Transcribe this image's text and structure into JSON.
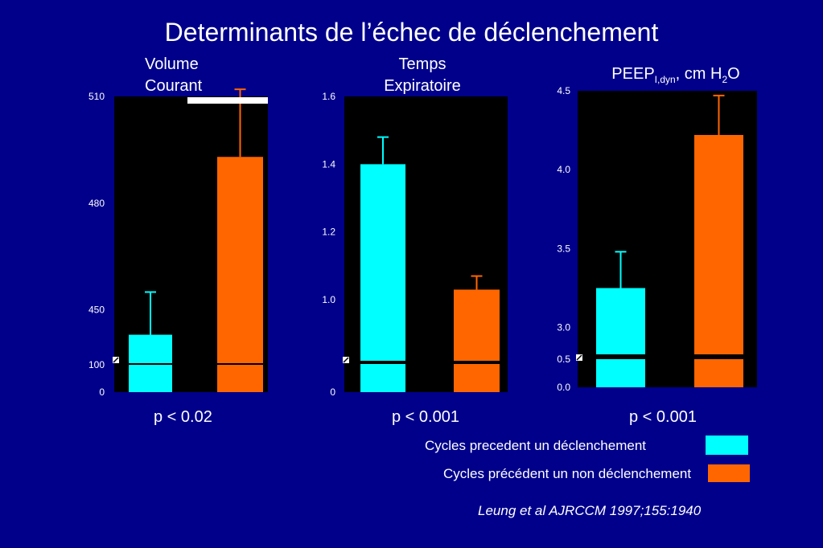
{
  "title": "Determinants de l’échec de déclenchement",
  "colors": {
    "background": "#00008b",
    "cyan": "#00ffff",
    "orange": "#ff6600",
    "plot_bg": "#000000"
  },
  "panels": [
    {
      "title_line1": "Volume",
      "title_line2": "Courant",
      "p_value": "p < 0.02"
    },
    {
      "title_line1": "Temps",
      "title_line2": "Expiratoire",
      "p_value": "p < 0.001"
    },
    {
      "title_main": "PEEP",
      "title_sub": "I,dyn",
      "title_rest": ", cm H",
      "title_sub2": "2",
      "title_end": "O",
      "p_value": "p < 0.001"
    }
  ],
  "legend": {
    "cyan_label": "Cycles precedent un déclenchement",
    "orange_label": "Cycles précédent un non déclenchement"
  },
  "citation": "Leung et al AJRCCM 1997;155:1940",
  "chart_data": [
    {
      "type": "bar",
      "categories": [
        "Cycles precedent un déclenchement",
        "Cycles précédent un non déclenchement"
      ],
      "values": [
        443,
        493
      ],
      "error_upper": [
        455,
        512
      ],
      "ylim_main": [
        435,
        510
      ],
      "ylim_break": [
        0,
        100
      ],
      "yticks": [
        {
          "value": 510,
          "label": "510"
        },
        {
          "value": 480,
          "label": "480"
        },
        {
          "value": 450,
          "label": "450"
        }
      ],
      "break_ticks": [
        {
          "value": 100,
          "label": "100"
        },
        {
          "value": 0,
          "label": "0"
        }
      ],
      "axis_break": true
    },
    {
      "type": "bar",
      "categories": [
        "Cycles precedent un déclenchement",
        "Cycles précédent un non déclenchement"
      ],
      "values": [
        1.4,
        1.03
      ],
      "error_upper": [
        1.48,
        1.07
      ],
      "ylim_main": [
        0.82,
        1.6
      ],
      "ylim_break": [
        0,
        0.82
      ],
      "yticks": [
        {
          "value": 1.6,
          "label": "1.6"
        },
        {
          "value": 1.4,
          "label": "1.4"
        },
        {
          "value": 1.2,
          "label": "1.2"
        },
        {
          "value": 1.0,
          "label": "1.0"
        }
      ],
      "break_ticks": [
        {
          "value": 0,
          "label": "0"
        }
      ],
      "axis_break": true
    },
    {
      "type": "bar",
      "categories": [
        "Cycles precedent un déclenchement",
        "Cycles précédent un non déclenchement"
      ],
      "values": [
        3.25,
        4.22
      ],
      "error_upper": [
        3.48,
        4.47
      ],
      "ylim_main": [
        2.83,
        4.5
      ],
      "ylim_break": [
        0,
        0.5
      ],
      "yticks": [
        {
          "value": 4.5,
          "label": "4.5"
        },
        {
          "value": 4.0,
          "label": "4.0"
        },
        {
          "value": 3.5,
          "label": "3.5"
        },
        {
          "value": 3.0,
          "label": "3.0"
        }
      ],
      "break_ticks": [
        {
          "value": 0.5,
          "label": "0.5"
        },
        {
          "value": 0,
          "label": "0.0"
        }
      ],
      "axis_break": true
    }
  ]
}
